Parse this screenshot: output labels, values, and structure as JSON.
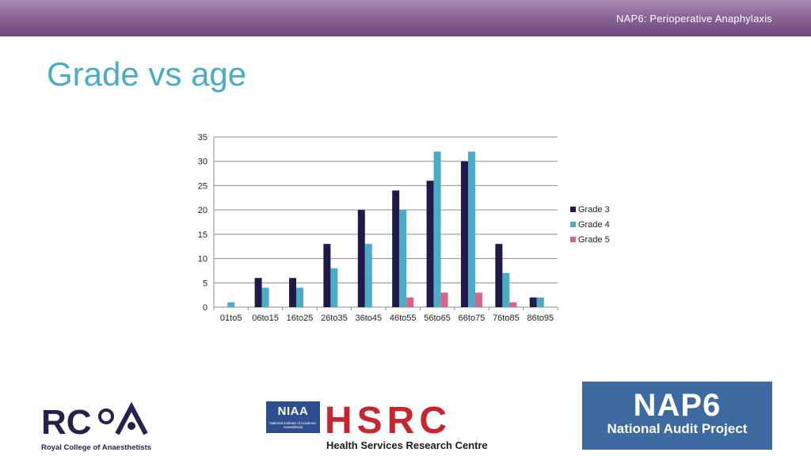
{
  "header": {
    "title": "NAP6: Perioperative Anaphylaxis"
  },
  "slide": {
    "title": "Grade vs age"
  },
  "chart_data": {
    "type": "bar",
    "title": "",
    "xlabel": "",
    "ylabel": "",
    "categories": [
      "01to5",
      "06to15",
      "16to25",
      "26to35",
      "36to45",
      "46to55",
      "56to65",
      "66to75",
      "76to85",
      "86to95"
    ],
    "series": [
      {
        "name": "Grade 3",
        "color": "#1f1a4a",
        "values": [
          0,
          6,
          6,
          13,
          20,
          24,
          26,
          30,
          13,
          2
        ]
      },
      {
        "name": "Grade 4",
        "color": "#4bacc6",
        "values": [
          1,
          4,
          4,
          8,
          13,
          20,
          32,
          32,
          7,
          2
        ]
      },
      {
        "name": "Grade 5",
        "color": "#d6658e",
        "values": [
          0,
          0,
          0,
          0,
          0,
          2,
          3,
          3,
          1,
          0
        ]
      }
    ],
    "ylim": [
      0,
      35
    ],
    "yticks": [
      0,
      5,
      10,
      15,
      20,
      25,
      30,
      35
    ],
    "grid": true,
    "legend": "right"
  },
  "logos": {
    "rcoa": {
      "mark": "RCOA",
      "caption": "Royal College of Anaesthetists",
      "color": "#2a1f4d"
    },
    "hsrc": {
      "niaa": "NIAA",
      "niaa_sub": "National Institute of Academic Anaesthesia",
      "letters": "HSRC",
      "caption": "Health Services Research Centre",
      "color": "#c8262e"
    },
    "nap6": {
      "big": "NAP6",
      "sub": "National Audit Project",
      "color": "#3d6aa0"
    }
  }
}
